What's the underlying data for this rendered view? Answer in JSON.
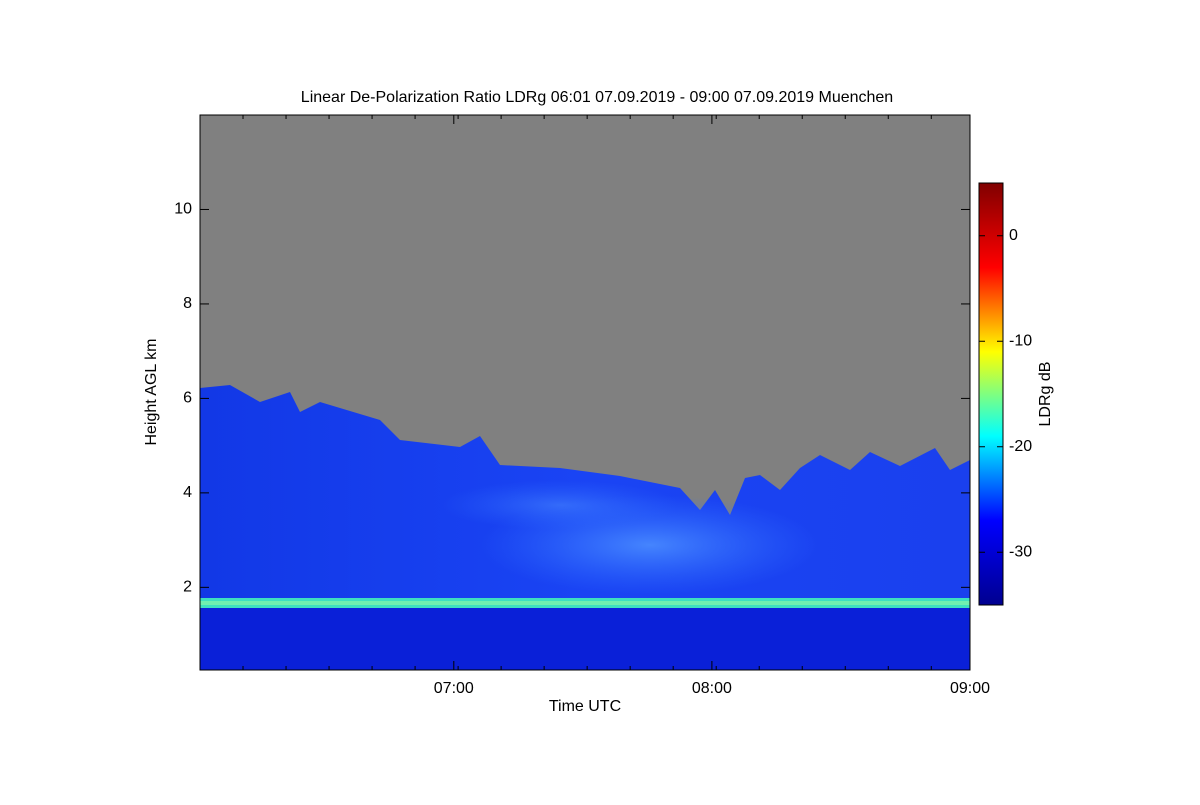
{
  "chart_data": {
    "type": "heatmap",
    "title": "Linear De-Polarization Ratio LDRg   06:01 07.09.2019 - 09:00 07.09.2019 Muenchen",
    "xlabel": "Time UTC",
    "ylabel": "Height AGL km",
    "colorbar_label": "LDRg dB",
    "xlim": [
      "06:01",
      "09:00"
    ],
    "xticks": [
      "07:00",
      "08:00",
      "09:00"
    ],
    "ylim": [
      0.25,
      12
    ],
    "yticks": [
      2,
      4,
      6,
      8,
      10
    ],
    "clim": [
      -35,
      5
    ],
    "cticks": [
      0,
      -10,
      -20,
      -30
    ],
    "colormap": [
      "#00008f",
      "#0000ff",
      "#00ffff",
      "#ffff00",
      "#ff0000",
      "#800000"
    ]
  }
}
